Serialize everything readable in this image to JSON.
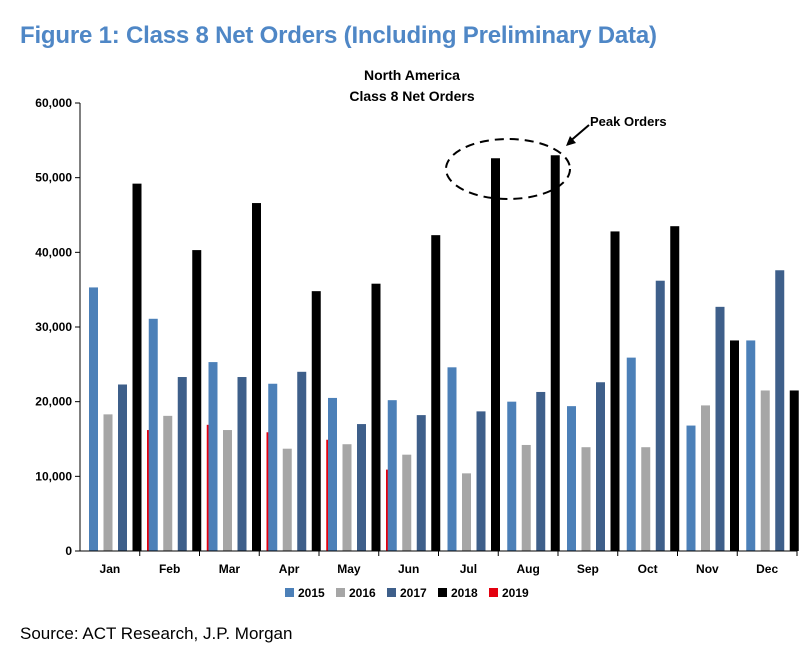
{
  "figure": {
    "title": "Figure 1: Class 8 Net Orders (Including Preliminary Data)",
    "source": "Source: ACT Research, J.P. Morgan"
  },
  "chart_data": {
    "type": "bar",
    "title": "North America",
    "subtitle": "Class 8 Net Orders",
    "xlabel": "",
    "ylabel": "",
    "ylim": [
      0,
      60000
    ],
    "yticks": [
      0,
      10000,
      20000,
      30000,
      40000,
      50000,
      60000
    ],
    "ytick_labels": [
      "0",
      "10,000",
      "20,000",
      "30,000",
      "40,000",
      "50,000",
      "60,000"
    ],
    "grid": false,
    "legend_position": "bottom",
    "categories": [
      "Jan",
      "Feb",
      "Mar",
      "Apr",
      "May",
      "Jun",
      "Jul",
      "Aug",
      "Sep",
      "Oct",
      "Nov",
      "Dec"
    ],
    "series": [
      {
        "name": "2015",
        "color": "#4c80b8",
        "values": [
          35300,
          31100,
          25300,
          22400,
          20500,
          20200,
          24600,
          20000,
          19400,
          25900,
          16800,
          28200
        ]
      },
      {
        "name": "2016",
        "color": "#a6a6a6",
        "values": [
          18300,
          18100,
          16200,
          13700,
          14300,
          12900,
          10400,
          14200,
          13900,
          13900,
          19500,
          21500
        ]
      },
      {
        "name": "2017",
        "color": "#3e5f8a",
        "values": [
          22300,
          23300,
          23300,
          24000,
          17000,
          18200,
          18700,
          21300,
          22600,
          36200,
          32700,
          37600
        ]
      },
      {
        "name": "2018",
        "color": "#000000",
        "values": [
          49200,
          40300,
          46600,
          34800,
          35800,
          42300,
          52600,
          53000,
          42800,
          43500,
          28200,
          21500
        ]
      },
      {
        "name": "2019",
        "color": "#e3000f",
        "values": [
          16200,
          16900,
          15900,
          14900,
          10900,
          null,
          null,
          null,
          null,
          null,
          null,
          null
        ]
      }
    ],
    "annotations": [
      {
        "text": "Peak Orders",
        "target": "Jul–Aug 2018"
      }
    ]
  }
}
